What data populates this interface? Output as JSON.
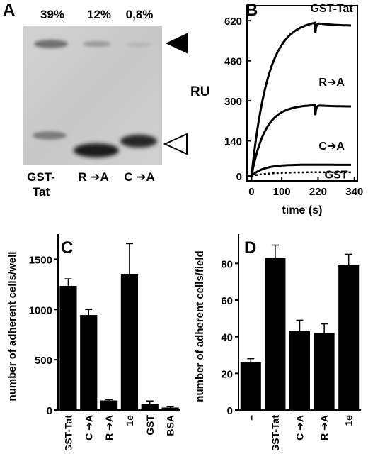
{
  "figure": {
    "panelA": {
      "letter": "A",
      "percentages": [
        "39%",
        "12%",
        "0,8%"
      ],
      "lane_labels": [
        {
          "line1": "GST-",
          "line2": "Tat"
        },
        {
          "line1": "R ➔A",
          "line2": ""
        },
        {
          "line1": "C ➔A",
          "line2": ""
        }
      ],
      "marker_upper": "filled-triangle-icon",
      "marker_lower": "open-triangle-icon"
    },
    "panelB": {
      "letter": "B"
    },
    "panelC": {
      "letter": "C"
    },
    "panelD": {
      "letter": "D"
    }
  },
  "chart_data": [
    {
      "id": "B",
      "type": "line",
      "ylabel": "RU",
      "xlabel": "time (s)",
      "xticks": [
        0,
        100,
        220,
        340
      ],
      "yticks": [
        0,
        140,
        300,
        460,
        620
      ],
      "xlim": [
        -15,
        350
      ],
      "ylim": [
        -20,
        680
      ],
      "series": [
        {
          "name": "GST-Tat",
          "label": "GST-Tat",
          "plateau": 625,
          "tau": 55,
          "injection_end": 210,
          "style": "solid",
          "label_x": 265,
          "label_y": 655
        },
        {
          "name": "R➔A",
          "label": "R➔A",
          "plateau": 285,
          "tau": 45,
          "injection_end": 210,
          "style": "solid",
          "label_x": 265,
          "label_y": 360
        },
        {
          "name": "C➔A",
          "label": "C➔A",
          "plateau": 45,
          "tau": 40,
          "injection_end": 210,
          "style": "solid",
          "label_x": 265,
          "label_y": 105
        },
        {
          "name": "GST",
          "label": "GST",
          "plateau": 15,
          "tau": 60,
          "injection_end": 210,
          "style": "dotted",
          "label_x": 280,
          "label_y": -10
        }
      ]
    },
    {
      "id": "C",
      "type": "bar",
      "ylabel": "number of adherent cells/well",
      "categories": [
        "GST-Tat",
        "C ➔A",
        "R ➔A",
        "1e",
        "GST",
        "BSA"
      ],
      "values": [
        1235,
        945,
        95,
        1355,
        60,
        25
      ],
      "errors": [
        70,
        55,
        8,
        300,
        30,
        8
      ],
      "yticks": [
        0,
        500,
        1000,
        1500
      ],
      "ylim": [
        0,
        1750
      ]
    },
    {
      "id": "D",
      "type": "bar",
      "ylabel": "number of adherent cells/field",
      "categories": [
        "–",
        "GST-Tat",
        "C ➔A",
        "R ➔A",
        "1e"
      ],
      "values": [
        26,
        83,
        43,
        42,
        79
      ],
      "errors": [
        2,
        7,
        6,
        5,
        6
      ],
      "yticks": [
        0,
        20,
        40,
        60,
        80
      ],
      "ylim": [
        0,
        96
      ]
    }
  ]
}
